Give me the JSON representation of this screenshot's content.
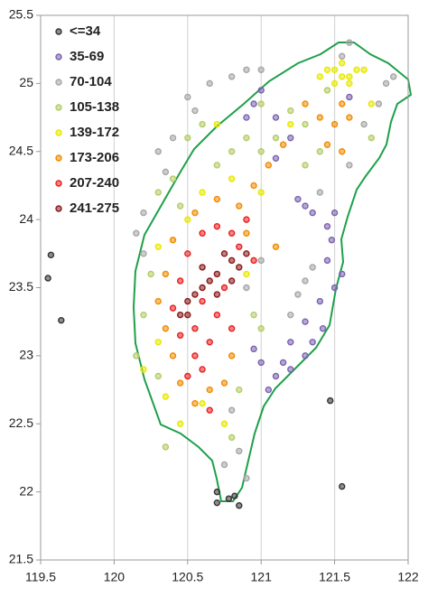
{
  "chart_data": {
    "type": "scatter",
    "xlim": [
      119.5,
      122
    ],
    "xticks": [
      119.5,
      120,
      120.5,
      121,
      121.5,
      122
    ],
    "ylim": [
      21.5,
      25.5
    ],
    "yticks": [
      21.5,
      22,
      22.5,
      23,
      23.5,
      24,
      24.5,
      25,
      25.5
    ],
    "grid": "x",
    "legend": "upper left",
    "series": [
      {
        "name": "<=34",
        "color": "#333333",
        "x": [
          119.57,
          119.55,
          119.64,
          121.47,
          121.55,
          120.7,
          120.78,
          120.85,
          120.7,
          120.82
        ],
        "values": [
          23.74,
          23.57,
          23.26,
          22.67,
          22.04,
          21.92,
          21.95,
          21.9,
          22.0,
          21.97
        ]
      },
      {
        "name": "35-69",
        "color": "#7a62b0",
        "x": [
          121.0,
          120.95,
          121.1,
          121.3,
          121.35,
          121.45,
          121.48,
          121.45,
          121.5,
          121.4,
          121.3,
          121.2,
          121.15,
          121.1,
          121.05,
          120.95,
          121.0,
          121.42,
          121.35,
          121.55,
          121.5,
          121.25,
          121.1,
          121.2,
          120.9,
          121.6,
          121.3,
          121.2
        ],
        "values": [
          24.95,
          24.85,
          24.75,
          24.1,
          24.05,
          23.95,
          23.85,
          23.7,
          23.5,
          23.4,
          23.25,
          23.1,
          22.95,
          22.85,
          22.75,
          23.05,
          22.95,
          23.2,
          23.1,
          23.6,
          24.05,
          24.15,
          24.45,
          24.6,
          24.75,
          24.9,
          23.0,
          22.9
        ]
      },
      {
        "name": "70-104",
        "color": "#a6a6a6",
        "x": [
          120.5,
          120.55,
          120.65,
          120.8,
          120.9,
          121.0,
          120.4,
          120.3,
          120.35,
          120.2,
          120.15,
          120.2,
          121.3,
          121.25,
          121.35,
          121.2,
          121.4,
          121.6,
          121.7,
          121.8,
          121.85,
          121.9,
          121.55,
          121.6,
          121.0,
          120.9,
          120.8,
          120.85,
          120.9,
          120.75
        ],
        "values": [
          24.9,
          24.8,
          25.0,
          25.05,
          25.1,
          25.1,
          24.6,
          24.5,
          24.35,
          24.05,
          23.9,
          23.75,
          23.55,
          23.45,
          23.65,
          23.3,
          24.2,
          24.4,
          24.7,
          24.85,
          25.0,
          25.05,
          25.2,
          25.3,
          23.7,
          23.5,
          22.6,
          22.3,
          22.1,
          22.2
        ]
      },
      {
        "name": "105-138",
        "color": "#b3cc66",
        "x": [
          120.3,
          120.4,
          120.5,
          120.6,
          120.7,
          120.8,
          120.9,
          121.0,
          121.1,
          121.2,
          121.3,
          121.4,
          120.25,
          120.2,
          120.15,
          120.3,
          120.95,
          121.0,
          120.85,
          120.8,
          120.35,
          121.45,
          121.75,
          121.0,
          120.45,
          121.3
        ],
        "values": [
          24.2,
          24.3,
          24.6,
          24.7,
          24.4,
          24.5,
          24.6,
          24.5,
          24.6,
          24.8,
          24.4,
          24.5,
          23.6,
          23.3,
          23.0,
          22.85,
          23.3,
          23.2,
          22.75,
          22.4,
          22.33,
          24.95,
          24.6,
          24.85,
          24.1,
          24.7
        ]
      },
      {
        "name": "139-172",
        "color": "#e8e800",
        "x": [
          121.5,
          121.55,
          121.6,
          121.65,
          121.5,
          121.6,
          121.45,
          121.55,
          121.7,
          121.4,
          120.7,
          120.8,
          120.6,
          120.5,
          120.3,
          120.3,
          120.2,
          120.35,
          120.45,
          120.6,
          120.75,
          120.9,
          121.0,
          121.2,
          121.75
        ],
        "values": [
          25.1,
          25.15,
          25.05,
          25.1,
          25.0,
          25.0,
          25.1,
          25.05,
          25.1,
          25.05,
          24.7,
          24.3,
          24.2,
          24.0,
          23.8,
          23.1,
          22.9,
          22.7,
          22.5,
          22.65,
          22.5,
          23.6,
          24.2,
          24.7,
          24.85
        ]
      },
      {
        "name": "173-206",
        "color": "#f08c00",
        "x": [
          121.3,
          121.4,
          121.5,
          121.6,
          121.45,
          121.55,
          121.15,
          121.05,
          120.95,
          120.85,
          120.7,
          120.55,
          120.4,
          120.35,
          120.3,
          120.35,
          120.4,
          120.45,
          120.55,
          120.65,
          120.75,
          120.8,
          121.1,
          121.55,
          120.9
        ],
        "values": [
          24.85,
          24.75,
          24.7,
          24.75,
          24.55,
          24.5,
          24.55,
          24.4,
          24.25,
          24.1,
          24.15,
          24.05,
          23.85,
          23.6,
          23.4,
          23.2,
          23.0,
          22.8,
          22.65,
          22.75,
          22.8,
          23.0,
          23.8,
          24.85,
          23.9
        ]
      },
      {
        "name": "207-240",
        "color": "#e82020",
        "x": [
          120.6,
          120.7,
          120.8,
          120.9,
          120.5,
          120.45,
          120.4,
          120.45,
          120.55,
          120.5,
          120.6,
          120.65,
          120.7,
          120.85,
          120.95,
          120.75,
          120.6,
          120.55,
          120.8,
          120.65
        ],
        "values": [
          23.9,
          23.95,
          23.9,
          24.0,
          23.75,
          23.55,
          23.35,
          23.15,
          23.0,
          22.85,
          22.9,
          23.1,
          23.3,
          23.8,
          23.7,
          23.5,
          23.4,
          23.2,
          23.2,
          22.6
        ]
      },
      {
        "name": "241-275",
        "color": "#8b1a1a",
        "x": [
          120.75,
          120.8,
          120.85,
          120.7,
          120.65,
          120.6,
          120.55,
          120.5,
          120.45,
          120.7,
          120.8,
          120.9,
          120.6,
          120.5
        ],
        "values": [
          23.75,
          23.7,
          23.65,
          23.6,
          23.55,
          23.5,
          23.45,
          23.3,
          23.3,
          23.45,
          23.55,
          23.75,
          23.65,
          23.4
        ]
      }
    ]
  }
}
